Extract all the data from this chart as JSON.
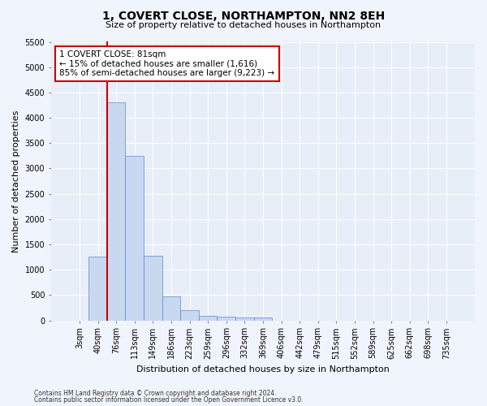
{
  "title": "1, COVERT CLOSE, NORTHAMPTON, NN2 8EH",
  "subtitle": "Size of property relative to detached houses in Northampton",
  "xlabel": "Distribution of detached houses by size in Northampton",
  "ylabel": "Number of detached properties",
  "bar_color": "#c8d8f0",
  "bar_edge_color": "#5b8cc8",
  "categories": [
    "3sqm",
    "40sqm",
    "76sqm",
    "113sqm",
    "149sqm",
    "186sqm",
    "223sqm",
    "259sqm",
    "296sqm",
    "332sqm",
    "369sqm",
    "406sqm",
    "442sqm",
    "479sqm",
    "515sqm",
    "552sqm",
    "589sqm",
    "625sqm",
    "662sqm",
    "698sqm",
    "735sqm"
  ],
  "values": [
    0,
    1260,
    4310,
    3240,
    1270,
    480,
    205,
    85,
    70,
    50,
    55,
    0,
    0,
    0,
    0,
    0,
    0,
    0,
    0,
    0,
    0
  ],
  "ylim": [
    0,
    5500
  ],
  "yticks": [
    0,
    500,
    1000,
    1500,
    2000,
    2500,
    3000,
    3500,
    4000,
    4500,
    5000,
    5500
  ],
  "vline_x": 2.0,
  "annotation_text": "1 COVERT CLOSE: 81sqm\n← 15% of detached houses are smaller (1,616)\n85% of semi-detached houses are larger (9,223) →",
  "footer_line1": "Contains HM Land Registry data © Crown copyright and database right 2024.",
  "footer_line2": "Contains public sector information licensed under the Open Government Licence v3.0.",
  "fig_facecolor": "#f0f4fc",
  "ax_facecolor": "#e8eef8",
  "grid_color": "#ffffff",
  "annotation_box_facecolor": "#ffffff",
  "annotation_border_color": "#cc0000",
  "vline_color": "#cc0000",
  "title_fontsize": 10,
  "subtitle_fontsize": 8,
  "axis_label_fontsize": 8,
  "tick_fontsize": 7,
  "annotation_fontsize": 7.5,
  "footer_fontsize": 5.5
}
